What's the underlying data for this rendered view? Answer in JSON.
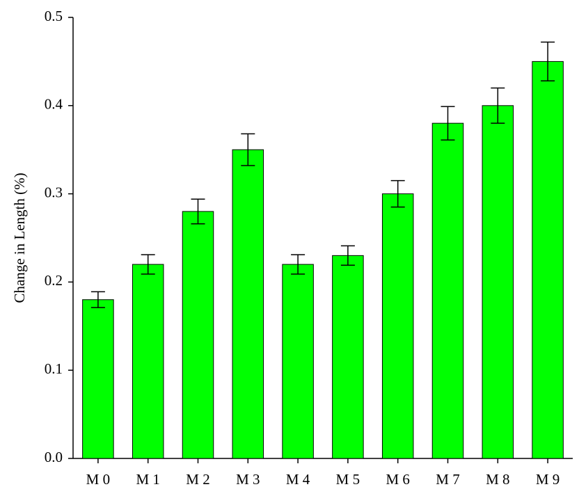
{
  "chart_data": {
    "type": "bar",
    "y_label": "Change in Length (%)",
    "categories": [
      "M 0",
      "M 1",
      "M 2",
      "M 3",
      "M 4",
      "M 5",
      "M 6",
      "M 7",
      "M 8",
      "M 9"
    ],
    "values": [
      0.18,
      0.22,
      0.28,
      0.35,
      0.22,
      0.23,
      0.3,
      0.38,
      0.4,
      0.45
    ],
    "errors": [
      0.009,
      0.011,
      0.014,
      0.018,
      0.011,
      0.011,
      0.015,
      0.019,
      0.02,
      0.022
    ],
    "color": "#00ff00",
    "ylim": [
      0,
      0.5
    ],
    "yticks": [
      {
        "value": 0,
        "label": "0.0"
      },
      0.1,
      0.2,
      0.3,
      0.4,
      0.5
    ]
  }
}
